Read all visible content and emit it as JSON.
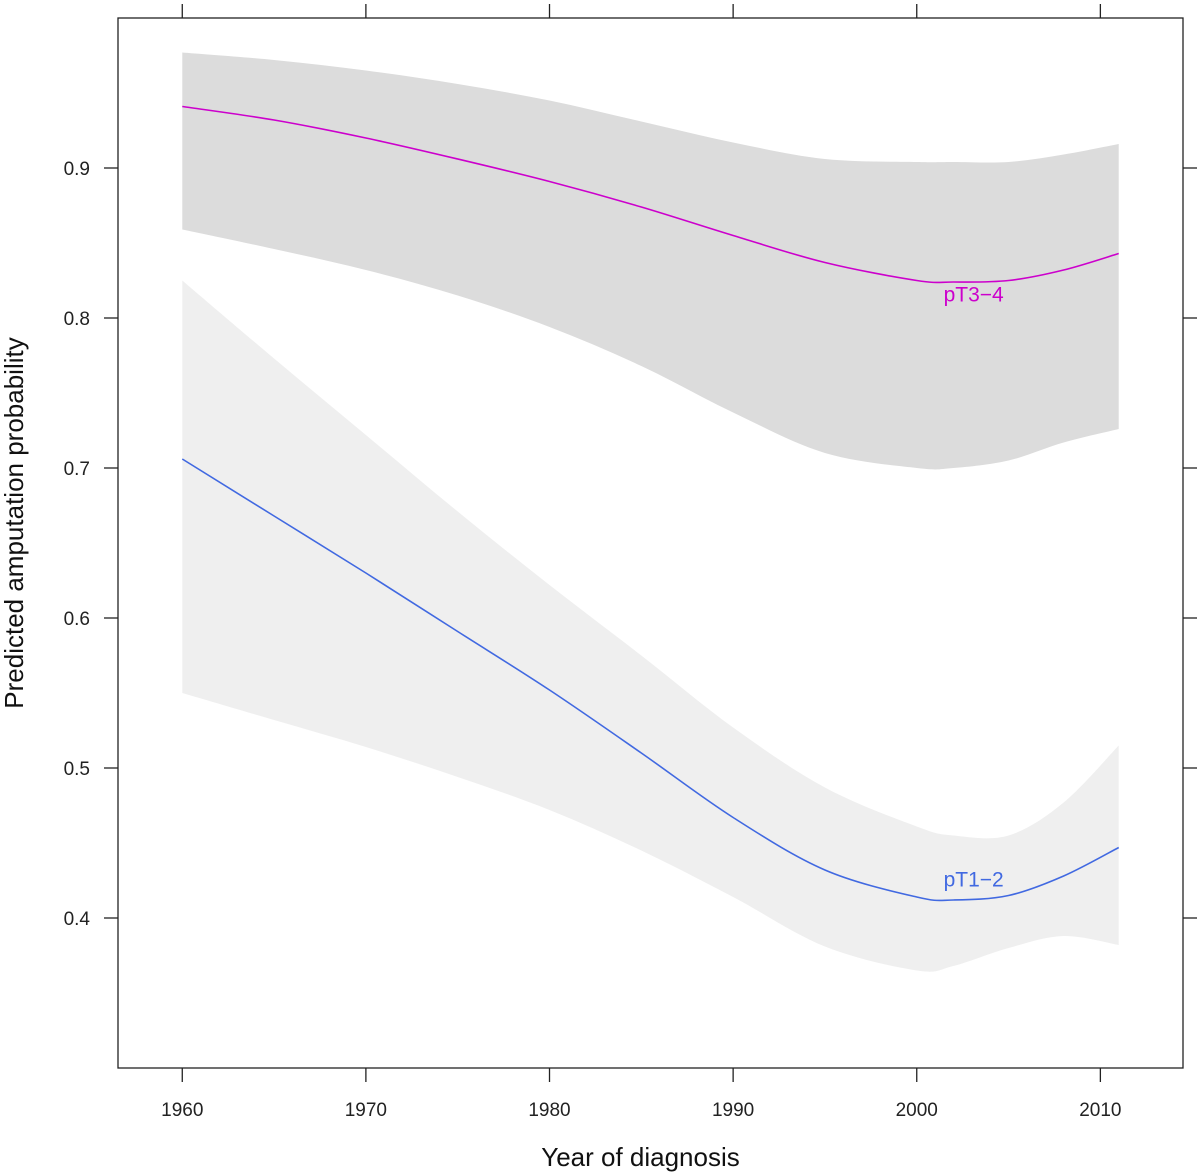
{
  "chart_data": {
    "type": "line",
    "title": "",
    "xlabel": "Year of diagnosis",
    "ylabel": "Predicted amputation probability",
    "xlim": [
      1956.5,
      2014.5
    ],
    "ylim": [
      0.3,
      1.0
    ],
    "x_ticks": [
      1960,
      1970,
      1980,
      1990,
      2000,
      2010
    ],
    "y_ticks": [
      0.4,
      0.5,
      0.6,
      0.7,
      0.8,
      0.9
    ],
    "x_tick_labels": [
      "1960",
      "1970",
      "1980",
      "1990",
      "2000",
      "2010"
    ],
    "y_tick_labels": [
      "0.4",
      "0.5",
      "0.6",
      "0.7",
      "0.8",
      "0.9"
    ],
    "grid": false,
    "legend": "none",
    "series": [
      {
        "name": "pT1−2",
        "color": "#4169e1",
        "band_color": "#efefef",
        "x": [
          1960,
          1965,
          1970,
          1975,
          1980,
          1985,
          1990,
          1995,
          2000,
          2002,
          2005,
          2008,
          2011
        ],
        "y": [
          0.706,
          0.668,
          0.63,
          0.591,
          0.552,
          0.51,
          0.467,
          0.432,
          0.414,
          0.412,
          0.415,
          0.428,
          0.447
        ],
        "lower": [
          0.55,
          0.532,
          0.514,
          0.494,
          0.472,
          0.445,
          0.414,
          0.381,
          0.365,
          0.368,
          0.38,
          0.388,
          0.382
        ],
        "upper": [
          0.825,
          0.773,
          0.722,
          0.671,
          0.622,
          0.575,
          0.527,
          0.487,
          0.461,
          0.455,
          0.455,
          0.477,
          0.515
        ]
      },
      {
        "name": "pT3−4",
        "color": "#cc00cc",
        "band_color": "#dcdcdc",
        "x": [
          1960,
          1965,
          1970,
          1975,
          1980,
          1985,
          1990,
          1995,
          2000,
          2002,
          2005,
          2008,
          2011
        ],
        "y": [
          0.941,
          0.932,
          0.92,
          0.906,
          0.891,
          0.874,
          0.855,
          0.837,
          0.825,
          0.824,
          0.825,
          0.832,
          0.843
        ],
        "lower": [
          0.859,
          0.846,
          0.832,
          0.815,
          0.794,
          0.768,
          0.737,
          0.71,
          0.7,
          0.7,
          0.705,
          0.717,
          0.726
        ],
        "upper": [
          0.977,
          0.972,
          0.965,
          0.956,
          0.945,
          0.931,
          0.917,
          0.906,
          0.904,
          0.904,
          0.904,
          0.909,
          0.916
        ]
      }
    ],
    "annotations": [
      {
        "text": "pT3−4",
        "x": 2003.1,
        "y": 0.811,
        "color": "#cc00cc"
      },
      {
        "text": "pT1−2",
        "x": 2003.1,
        "y": 0.421,
        "color": "#4169e1"
      }
    ]
  }
}
